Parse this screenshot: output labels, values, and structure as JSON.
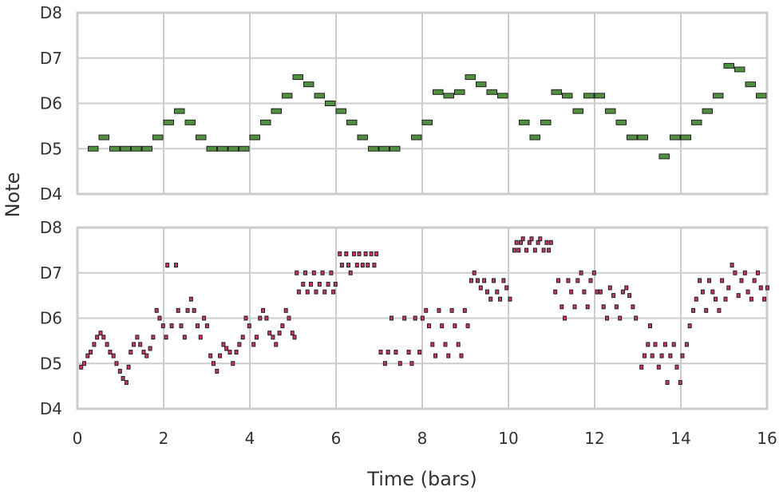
{
  "chart_data": {
    "type": "scatter",
    "xlabel": "Time (bars)",
    "ylabel": "Note",
    "xlim": [
      0,
      16
    ],
    "xticks": [
      "0",
      "2",
      "4",
      "6",
      "8",
      "10",
      "12",
      "14",
      "16"
    ],
    "ylim": [
      "D4",
      "D8"
    ],
    "yticks": [
      "D4",
      "D5",
      "D6",
      "D7",
      "D8"
    ],
    "grid": true,
    "panels": [
      {
        "color": "#4f8f3f",
        "note_length_bars": 0.25,
        "notes": [
          [
            0.25,
            5.0
          ],
          [
            0.5,
            5.25
          ],
          [
            0.75,
            5.0
          ],
          [
            1.0,
            5.0
          ],
          [
            1.25,
            5.0
          ],
          [
            1.5,
            5.0
          ],
          [
            1.75,
            5.25
          ],
          [
            2.0,
            5.58
          ],
          [
            2.25,
            5.83
          ],
          [
            2.5,
            5.58
          ],
          [
            2.75,
            5.25
          ],
          [
            3.0,
            5.0
          ],
          [
            3.25,
            5.0
          ],
          [
            3.5,
            5.0
          ],
          [
            3.75,
            5.0
          ],
          [
            4.0,
            5.25
          ],
          [
            4.25,
            5.58
          ],
          [
            4.5,
            5.83
          ],
          [
            4.75,
            6.17
          ],
          [
            5.0,
            6.58
          ],
          [
            5.25,
            6.42
          ],
          [
            5.5,
            6.17
          ],
          [
            5.75,
            6.0
          ],
          [
            6.0,
            5.83
          ],
          [
            6.25,
            5.58
          ],
          [
            6.5,
            5.25
          ],
          [
            6.75,
            5.0
          ],
          [
            7.0,
            5.0
          ],
          [
            7.25,
            5.0
          ],
          [
            7.75,
            5.25
          ],
          [
            8.0,
            5.58
          ],
          [
            8.25,
            6.25
          ],
          [
            8.5,
            6.17
          ],
          [
            8.75,
            6.25
          ],
          [
            9.0,
            6.58
          ],
          [
            9.25,
            6.42
          ],
          [
            9.5,
            6.25
          ],
          [
            9.75,
            6.17
          ],
          [
            10.25,
            5.58
          ],
          [
            10.5,
            5.25
          ],
          [
            10.75,
            5.58
          ],
          [
            11.0,
            6.25
          ],
          [
            11.25,
            6.17
          ],
          [
            11.5,
            5.83
          ],
          [
            11.75,
            6.17
          ],
          [
            12.0,
            6.17
          ],
          [
            12.25,
            5.83
          ],
          [
            12.5,
            5.58
          ],
          [
            12.75,
            5.25
          ],
          [
            13.0,
            5.25
          ],
          [
            13.5,
            4.83
          ],
          [
            13.75,
            5.25
          ],
          [
            14.0,
            5.25
          ],
          [
            14.25,
            5.58
          ],
          [
            14.5,
            5.83
          ],
          [
            14.75,
            6.17
          ],
          [
            15.0,
            6.83
          ],
          [
            15.25,
            6.75
          ],
          [
            15.5,
            6.42
          ],
          [
            15.75,
            6.17
          ]
        ]
      },
      {
        "color": "#c8336a",
        "note_length_bars": 0.06,
        "notes": [
          [
            0.05,
            4.92
          ],
          [
            0.12,
            5.0
          ],
          [
            0.2,
            5.17
          ],
          [
            0.27,
            5.25
          ],
          [
            0.35,
            5.42
          ],
          [
            0.42,
            5.58
          ],
          [
            0.5,
            5.67
          ],
          [
            0.57,
            5.58
          ],
          [
            0.65,
            5.42
          ],
          [
            0.72,
            5.25
          ],
          [
            0.8,
            5.17
          ],
          [
            0.87,
            5.0
          ],
          [
            0.95,
            4.83
          ],
          [
            1.02,
            4.67
          ],
          [
            1.1,
            4.58
          ],
          [
            1.15,
            4.92
          ],
          [
            1.2,
            5.25
          ],
          [
            1.27,
            5.42
          ],
          [
            1.35,
            5.58
          ],
          [
            1.42,
            5.42
          ],
          [
            1.5,
            5.25
          ],
          [
            1.57,
            5.17
          ],
          [
            1.65,
            5.33
          ],
          [
            1.72,
            5.58
          ],
          [
            1.8,
            6.17
          ],
          [
            1.87,
            6.0
          ],
          [
            1.95,
            5.83
          ],
          [
            2.02,
            5.58
          ],
          [
            2.05,
            7.17
          ],
          [
            2.15,
            5.83
          ],
          [
            2.25,
            7.17
          ],
          [
            2.3,
            6.17
          ],
          [
            2.37,
            5.83
          ],
          [
            2.45,
            5.58
          ],
          [
            2.52,
            6.17
          ],
          [
            2.6,
            6.42
          ],
          [
            2.67,
            6.17
          ],
          [
            2.75,
            5.83
          ],
          [
            2.82,
            5.58
          ],
          [
            2.9,
            6.0
          ],
          [
            2.97,
            5.83
          ],
          [
            3.05,
            5.17
          ],
          [
            3.12,
            5.0
          ],
          [
            3.2,
            4.83
          ],
          [
            3.27,
            5.17
          ],
          [
            3.35,
            5.42
          ],
          [
            3.42,
            5.33
          ],
          [
            3.5,
            5.25
          ],
          [
            3.57,
            5.0
          ],
          [
            3.65,
            5.25
          ],
          [
            3.72,
            5.42
          ],
          [
            3.8,
            5.58
          ],
          [
            3.87,
            6.0
          ],
          [
            3.95,
            5.83
          ],
          [
            4.05,
            5.42
          ],
          [
            4.12,
            5.58
          ],
          [
            4.2,
            6.0
          ],
          [
            4.27,
            6.17
          ],
          [
            4.35,
            6.0
          ],
          [
            4.42,
            5.67
          ],
          [
            4.5,
            5.58
          ],
          [
            4.57,
            5.42
          ],
          [
            4.65,
            5.67
          ],
          [
            4.72,
            5.83
          ],
          [
            4.8,
            6.17
          ],
          [
            4.87,
            6.0
          ],
          [
            4.95,
            5.67
          ],
          [
            5.0,
            5.58
          ],
          [
            5.05,
            7.0
          ],
          [
            5.1,
            6.58
          ],
          [
            5.2,
            6.75
          ],
          [
            5.25,
            7.0
          ],
          [
            5.3,
            6.58
          ],
          [
            5.38,
            6.75
          ],
          [
            5.45,
            7.0
          ],
          [
            5.5,
            6.58
          ],
          [
            5.58,
            6.75
          ],
          [
            5.65,
            7.0
          ],
          [
            5.7,
            6.58
          ],
          [
            5.78,
            6.75
          ],
          [
            5.85,
            7.0
          ],
          [
            5.9,
            6.58
          ],
          [
            5.95,
            6.75
          ],
          [
            6.05,
            7.42
          ],
          [
            6.1,
            7.17
          ],
          [
            6.2,
            7.42
          ],
          [
            6.25,
            7.17
          ],
          [
            6.3,
            7.0
          ],
          [
            6.38,
            7.42
          ],
          [
            6.45,
            7.17
          ],
          [
            6.5,
            7.42
          ],
          [
            6.58,
            7.17
          ],
          [
            6.65,
            7.42
          ],
          [
            6.7,
            7.17
          ],
          [
            6.78,
            7.42
          ],
          [
            6.85,
            7.17
          ],
          [
            6.9,
            7.42
          ],
          [
            7.0,
            5.25
          ],
          [
            7.1,
            5.0
          ],
          [
            7.17,
            5.25
          ],
          [
            7.25,
            6.0
          ],
          [
            7.35,
            5.25
          ],
          [
            7.45,
            5.0
          ],
          [
            7.55,
            6.0
          ],
          [
            7.65,
            5.25
          ],
          [
            7.72,
            5.0
          ],
          [
            7.8,
            6.0
          ],
          [
            7.9,
            5.25
          ],
          [
            7.97,
            6.0
          ],
          [
            8.05,
            6.17
          ],
          [
            8.12,
            5.83
          ],
          [
            8.2,
            5.42
          ],
          [
            8.27,
            5.17
          ],
          [
            8.35,
            6.17
          ],
          [
            8.42,
            5.83
          ],
          [
            8.5,
            5.42
          ],
          [
            8.57,
            5.17
          ],
          [
            8.65,
            6.17
          ],
          [
            8.72,
            5.83
          ],
          [
            8.8,
            5.42
          ],
          [
            8.87,
            5.17
          ],
          [
            8.95,
            6.17
          ],
          [
            9.02,
            5.83
          ],
          [
            9.1,
            6.83
          ],
          [
            9.17,
            7.0
          ],
          [
            9.25,
            6.83
          ],
          [
            9.32,
            6.67
          ],
          [
            9.4,
            6.83
          ],
          [
            9.47,
            6.58
          ],
          [
            9.55,
            6.42
          ],
          [
            9.62,
            6.83
          ],
          [
            9.7,
            6.58
          ],
          [
            9.77,
            6.42
          ],
          [
            9.85,
            6.83
          ],
          [
            9.92,
            6.67
          ],
          [
            10.0,
            6.42
          ],
          [
            10.1,
            7.5
          ],
          [
            10.15,
            7.67
          ],
          [
            10.2,
            7.5
          ],
          [
            10.25,
            7.67
          ],
          [
            10.3,
            7.75
          ],
          [
            10.38,
            7.5
          ],
          [
            10.45,
            7.67
          ],
          [
            10.5,
            7.75
          ],
          [
            10.58,
            7.5
          ],
          [
            10.65,
            7.67
          ],
          [
            10.7,
            7.75
          ],
          [
            10.78,
            7.5
          ],
          [
            10.85,
            7.67
          ],
          [
            10.9,
            7.5
          ],
          [
            10.95,
            7.67
          ],
          [
            11.05,
            6.58
          ],
          [
            11.12,
            6.83
          ],
          [
            11.2,
            6.25
          ],
          [
            11.27,
            6.0
          ],
          [
            11.35,
            6.83
          ],
          [
            11.42,
            6.58
          ],
          [
            11.5,
            6.25
          ],
          [
            11.57,
            6.83
          ],
          [
            11.65,
            7.0
          ],
          [
            11.72,
            6.58
          ],
          [
            11.8,
            6.25
          ],
          [
            11.87,
            6.83
          ],
          [
            11.95,
            7.0
          ],
          [
            12.02,
            6.58
          ],
          [
            12.1,
            6.58
          ],
          [
            12.17,
            6.25
          ],
          [
            12.25,
            6.0
          ],
          [
            12.32,
            6.67
          ],
          [
            12.4,
            6.5
          ],
          [
            12.47,
            6.25
          ],
          [
            12.55,
            6.0
          ],
          [
            12.62,
            6.58
          ],
          [
            12.7,
            6.67
          ],
          [
            12.77,
            6.5
          ],
          [
            12.85,
            6.25
          ],
          [
            12.92,
            6.0
          ],
          [
            13.05,
            4.92
          ],
          [
            13.12,
            5.17
          ],
          [
            13.2,
            5.42
          ],
          [
            13.25,
            5.83
          ],
          [
            13.3,
            5.17
          ],
          [
            13.37,
            5.42
          ],
          [
            13.45,
            4.92
          ],
          [
            13.52,
            5.17
          ],
          [
            13.6,
            5.42
          ],
          [
            13.65,
            4.58
          ],
          [
            13.72,
            5.17
          ],
          [
            13.8,
            5.42
          ],
          [
            13.87,
            4.92
          ],
          [
            13.95,
            4.58
          ],
          [
            14.0,
            5.17
          ],
          [
            14.1,
            5.42
          ],
          [
            14.17,
            5.83
          ],
          [
            14.25,
            6.17
          ],
          [
            14.32,
            6.42
          ],
          [
            14.4,
            6.83
          ],
          [
            14.47,
            6.58
          ],
          [
            14.55,
            6.17
          ],
          [
            14.62,
            6.83
          ],
          [
            14.7,
            6.58
          ],
          [
            14.77,
            6.42
          ],
          [
            14.85,
            6.17
          ],
          [
            14.92,
            6.83
          ],
          [
            15.0,
            6.42
          ],
          [
            15.07,
            6.67
          ],
          [
            15.15,
            7.17
          ],
          [
            15.22,
            7.0
          ],
          [
            15.3,
            6.5
          ],
          [
            15.37,
            6.83
          ],
          [
            15.45,
            7.0
          ],
          [
            15.52,
            6.58
          ],
          [
            15.6,
            6.42
          ],
          [
            15.67,
            6.83
          ],
          [
            15.75,
            7.0
          ],
          [
            15.82,
            6.67
          ],
          [
            15.9,
            6.42
          ],
          [
            15.97,
            6.67
          ]
        ]
      }
    ]
  }
}
